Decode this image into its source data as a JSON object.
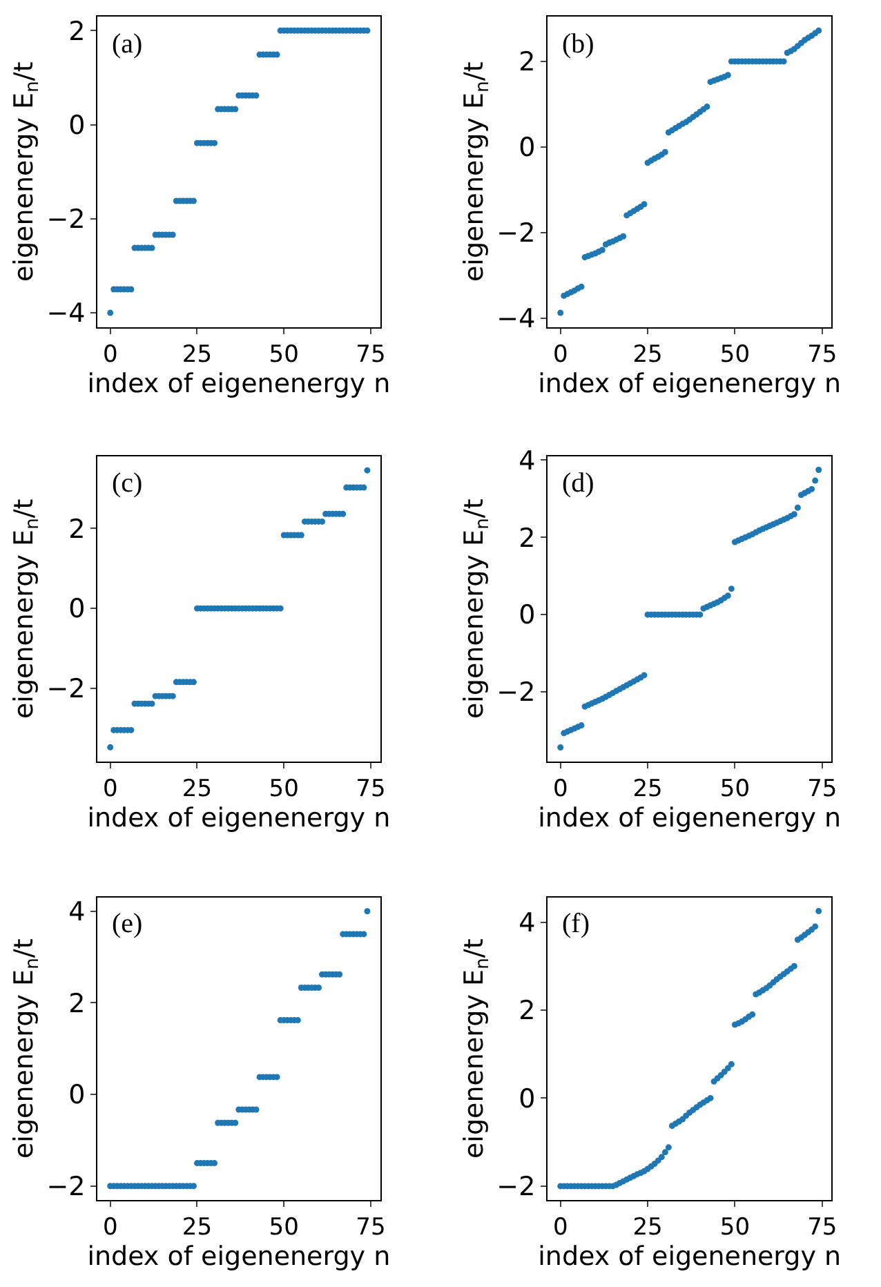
{
  "chart_data": [
    {
      "type": "scatter",
      "annotations": [
        "(a)"
      ],
      "xlabel": "index of eigenenergy n",
      "ylabel": "eigenenergy E$_{n}$/t",
      "xlim": [
        -3.7,
        77.7
      ],
      "xticks": [
        0,
        25,
        50,
        75
      ],
      "ylim": [
        -4.3,
        2.3
      ],
      "yticks": [
        -4,
        -2,
        0,
        2
      ],
      "marker": "circle",
      "grid": false,
      "x": [
        0,
        1,
        2,
        3,
        4,
        5,
        6,
        7,
        8,
        9,
        10,
        11,
        12,
        13,
        14,
        15,
        16,
        17,
        18,
        19,
        20,
        21,
        22,
        23,
        24,
        25,
        26,
        27,
        28,
        29,
        30,
        31,
        32,
        33,
        34,
        35,
        36,
        37,
        38,
        39,
        40,
        41,
        42,
        43,
        44,
        45,
        46,
        47,
        48,
        49,
        50,
        51,
        52,
        53,
        54,
        55,
        56,
        57,
        58,
        59,
        60,
        61,
        62,
        63,
        64,
        65,
        66,
        67,
        68,
        69,
        70,
        71,
        72,
        73,
        74
      ],
      "series": [
        {
          "color": "#1f77b4",
          "values": [
            -4.0,
            -3.5,
            -3.5,
            -3.5,
            -3.5,
            -3.5,
            -3.5,
            -2.62,
            -2.62,
            -2.62,
            -2.62,
            -2.62,
            -2.62,
            -2.34,
            -2.34,
            -2.34,
            -2.34,
            -2.34,
            -2.34,
            -1.62,
            -1.62,
            -1.62,
            -1.62,
            -1.62,
            -1.62,
            -0.39,
            -0.39,
            -0.39,
            -0.39,
            -0.39,
            -0.39,
            0.33,
            0.33,
            0.33,
            0.33,
            0.33,
            0.33,
            0.62,
            0.62,
            0.62,
            0.62,
            0.62,
            0.62,
            1.49,
            1.49,
            1.49,
            1.49,
            1.49,
            1.49,
            2.0,
            2.0,
            2.0,
            2.0,
            2.0,
            2.0,
            2.0,
            2.0,
            2.0,
            2.0,
            2.0,
            2.0,
            2.0,
            2.0,
            2.0,
            2.0,
            2.0,
            2.0,
            2.0,
            2.0,
            2.0,
            2.0,
            2.0,
            2.0,
            2.0,
            2.0
          ]
        }
      ]
    },
    {
      "type": "scatter",
      "annotations": [
        "(b)"
      ],
      "xlabel": "index of eigenenergy n",
      "ylabel": "eigenenergy E$_{n}$/t",
      "xlim": [
        -3.7,
        77.7
      ],
      "xticks": [
        0,
        25,
        50,
        75
      ],
      "ylim": [
        -4.21,
        3.05
      ],
      "yticks": [
        -4,
        -2,
        0,
        2
      ],
      "marker": "circle",
      "grid": false,
      "x": [
        0,
        1,
        2,
        3,
        4,
        5,
        6,
        7,
        8,
        9,
        10,
        11,
        12,
        13,
        14,
        15,
        16,
        17,
        18,
        19,
        20,
        21,
        22,
        23,
        24,
        25,
        26,
        27,
        28,
        29,
        30,
        31,
        32,
        33,
        34,
        35,
        36,
        37,
        38,
        39,
        40,
        41,
        42,
        43,
        44,
        45,
        46,
        47,
        48,
        49,
        50,
        51,
        52,
        53,
        54,
        55,
        56,
        57,
        58,
        59,
        60,
        61,
        62,
        63,
        64,
        65,
        66,
        67,
        68,
        69,
        70,
        71,
        72,
        73,
        74
      ],
      "series": [
        {
          "color": "#1f77b4",
          "values": [
            -3.88,
            -3.48,
            -3.44,
            -3.4,
            -3.36,
            -3.31,
            -3.27,
            -2.58,
            -2.55,
            -2.52,
            -2.49,
            -2.45,
            -2.41,
            -2.28,
            -2.24,
            -2.21,
            -2.17,
            -2.13,
            -2.09,
            -1.6,
            -1.55,
            -1.5,
            -1.45,
            -1.4,
            -1.34,
            -0.37,
            -0.32,
            -0.27,
            -0.23,
            -0.18,
            -0.12,
            0.34,
            0.39,
            0.44,
            0.49,
            0.54,
            0.58,
            0.64,
            0.7,
            0.76,
            0.82,
            0.88,
            0.94,
            1.52,
            1.55,
            1.58,
            1.61,
            1.64,
            1.68,
            2.0,
            2.0,
            2.0,
            2.0,
            2.0,
            2.0,
            2.0,
            2.0,
            2.0,
            2.0,
            2.0,
            2.0,
            2.0,
            2.0,
            2.0,
            2.0,
            2.2,
            2.24,
            2.29,
            2.36,
            2.43,
            2.5,
            2.55,
            2.6,
            2.66,
            2.72
          ]
        }
      ]
    },
    {
      "type": "scatter",
      "annotations": [
        "(c)"
      ],
      "xlabel": "index of eigenenergy n",
      "ylabel": "eigenenergy E$_{n}$/t",
      "xlim": [
        -3.7,
        77.7
      ],
      "xticks": [
        0,
        25,
        50,
        75
      ],
      "ylim": [
        -3.82,
        3.8
      ],
      "yticks": [
        -2,
        0,
        2
      ],
      "marker": "circle",
      "grid": false,
      "x": [
        0,
        1,
        2,
        3,
        4,
        5,
        6,
        7,
        8,
        9,
        10,
        11,
        12,
        13,
        14,
        15,
        16,
        17,
        18,
        19,
        20,
        21,
        22,
        23,
        24,
        25,
        26,
        27,
        28,
        29,
        30,
        31,
        32,
        33,
        34,
        35,
        36,
        37,
        38,
        39,
        40,
        41,
        42,
        43,
        44,
        45,
        46,
        47,
        48,
        49,
        50,
        51,
        52,
        53,
        54,
        55,
        56,
        57,
        58,
        59,
        60,
        61,
        62,
        63,
        64,
        65,
        66,
        67,
        68,
        69,
        70,
        71,
        72,
        73,
        74
      ],
      "series": [
        {
          "color": "#1f77b4",
          "values": [
            -3.47,
            -3.04,
            -3.04,
            -3.04,
            -3.04,
            -3.04,
            -3.04,
            -2.38,
            -2.38,
            -2.38,
            -2.38,
            -2.38,
            -2.38,
            -2.19,
            -2.19,
            -2.19,
            -2.19,
            -2.19,
            -2.19,
            -1.84,
            -1.84,
            -1.84,
            -1.84,
            -1.84,
            -1.84,
            0.0,
            0.0,
            0.0,
            0.0,
            0.0,
            0.0,
            0.0,
            0.0,
            0.0,
            0.0,
            0.0,
            0.0,
            0.0,
            0.0,
            0.0,
            0.0,
            0.0,
            0.0,
            0.0,
            0.0,
            0.0,
            0.0,
            0.0,
            0.0,
            0.0,
            1.83,
            1.83,
            1.83,
            1.83,
            1.83,
            1.83,
            2.17,
            2.17,
            2.17,
            2.17,
            2.17,
            2.17,
            2.36,
            2.36,
            2.36,
            2.36,
            2.36,
            2.36,
            3.02,
            3.02,
            3.02,
            3.02,
            3.02,
            3.02,
            3.45
          ]
        }
      ]
    },
    {
      "type": "scatter",
      "annotations": [
        "(d)"
      ],
      "xlabel": "index of eigenenergy n",
      "ylabel": "eigenenergy E$_{n}$/t",
      "xlim": [
        -3.7,
        77.7
      ],
      "xticks": [
        0,
        25,
        50,
        75
      ],
      "ylim": [
        -3.8,
        4.1
      ],
      "yticks": [
        -2,
        0,
        2,
        4
      ],
      "marker": "circle",
      "grid": false,
      "x": [
        0,
        1,
        2,
        3,
        4,
        5,
        6,
        7,
        8,
        9,
        10,
        11,
        12,
        13,
        14,
        15,
        16,
        17,
        18,
        19,
        20,
        21,
        22,
        23,
        24,
        25,
        26,
        27,
        28,
        29,
        30,
        31,
        32,
        33,
        34,
        35,
        36,
        37,
        38,
        39,
        40,
        41,
        42,
        43,
        44,
        45,
        46,
        47,
        48,
        49,
        50,
        51,
        52,
        53,
        54,
        55,
        56,
        57,
        58,
        59,
        60,
        61,
        62,
        63,
        64,
        65,
        66,
        67,
        68,
        69,
        70,
        71,
        72,
        73,
        74
      ],
      "series": [
        {
          "color": "#1f77b4",
          "values": [
            -3.44,
            -3.07,
            -3.03,
            -2.99,
            -2.95,
            -2.91,
            -2.87,
            -2.38,
            -2.34,
            -2.3,
            -2.26,
            -2.22,
            -2.18,
            -2.13,
            -2.08,
            -2.03,
            -1.98,
            -1.93,
            -1.88,
            -1.83,
            -1.78,
            -1.73,
            -1.68,
            -1.63,
            -1.57,
            0.0,
            0.0,
            0.0,
            0.0,
            0.0,
            0.0,
            0.0,
            0.0,
            0.0,
            0.0,
            0.0,
            0.0,
            0.0,
            0.0,
            0.0,
            0.0,
            0.16,
            0.2,
            0.24,
            0.28,
            0.32,
            0.37,
            0.43,
            0.49,
            0.67,
            1.88,
            1.92,
            1.96,
            2.0,
            2.04,
            2.08,
            2.13,
            2.18,
            2.22,
            2.26,
            2.3,
            2.34,
            2.38,
            2.42,
            2.46,
            2.5,
            2.55,
            2.6,
            2.77,
            3.1,
            3.15,
            3.2,
            3.25,
            3.47,
            3.75
          ]
        }
      ]
    },
    {
      "type": "scatter",
      "annotations": [
        "(e)"
      ],
      "xlabel": "index of eigenenergy n",
      "ylabel": "eigenenergy E$_{n}$/t",
      "xlim": [
        -3.7,
        77.7
      ],
      "xticks": [
        0,
        25,
        50,
        75
      ],
      "ylim": [
        -2.3,
        4.3
      ],
      "yticks": [
        -2,
        0,
        2,
        4
      ],
      "marker": "circle",
      "grid": false,
      "x": [
        0,
        1,
        2,
        3,
        4,
        5,
        6,
        7,
        8,
        9,
        10,
        11,
        12,
        13,
        14,
        15,
        16,
        17,
        18,
        19,
        20,
        21,
        22,
        23,
        24,
        25,
        26,
        27,
        28,
        29,
        30,
        31,
        32,
        33,
        34,
        35,
        36,
        37,
        38,
        39,
        40,
        41,
        42,
        43,
        44,
        45,
        46,
        47,
        48,
        49,
        50,
        51,
        52,
        53,
        54,
        55,
        56,
        57,
        58,
        59,
        60,
        61,
        62,
        63,
        64,
        65,
        66,
        67,
        68,
        69,
        70,
        71,
        72,
        73,
        74
      ],
      "series": [
        {
          "color": "#1f77b4",
          "values": [
            -2.0,
            -2.0,
            -2.0,
            -2.0,
            -2.0,
            -2.0,
            -2.0,
            -2.0,
            -2.0,
            -2.0,
            -2.0,
            -2.0,
            -2.0,
            -2.0,
            -2.0,
            -2.0,
            -2.0,
            -2.0,
            -2.0,
            -2.0,
            -2.0,
            -2.0,
            -2.0,
            -2.0,
            -2.0,
            -1.5,
            -1.5,
            -1.5,
            -1.5,
            -1.5,
            -1.5,
            -0.62,
            -0.62,
            -0.62,
            -0.62,
            -0.62,
            -0.62,
            -0.33,
            -0.33,
            -0.33,
            -0.33,
            -0.33,
            -0.33,
            0.38,
            0.38,
            0.38,
            0.38,
            0.38,
            0.38,
            1.62,
            1.62,
            1.62,
            1.62,
            1.62,
            1.62,
            2.33,
            2.33,
            2.33,
            2.33,
            2.33,
            2.33,
            2.62,
            2.62,
            2.62,
            2.62,
            2.62,
            2.62,
            3.5,
            3.5,
            3.5,
            3.5,
            3.5,
            3.5,
            3.5,
            4.0
          ]
        }
      ]
    },
    {
      "type": "scatter",
      "annotations": [
        "(f)"
      ],
      "xlabel": "index of eigenenergy n",
      "ylabel": "eigenenergy E$_{n}$/t",
      "xlim": [
        -3.7,
        77.7
      ],
      "xticks": [
        0,
        25,
        50,
        75
      ],
      "ylim": [
        -2.31,
        4.56
      ],
      "yticks": [
        -2,
        0,
        2,
        4
      ],
      "marker": "circle",
      "grid": false,
      "x": [
        0,
        1,
        2,
        3,
        4,
        5,
        6,
        7,
        8,
        9,
        10,
        11,
        12,
        13,
        14,
        15,
        16,
        17,
        18,
        19,
        20,
        21,
        22,
        23,
        24,
        25,
        26,
        27,
        28,
        29,
        30,
        31,
        32,
        33,
        34,
        35,
        36,
        37,
        38,
        39,
        40,
        41,
        42,
        43,
        44,
        45,
        46,
        47,
        48,
        49,
        50,
        51,
        52,
        53,
        54,
        55,
        56,
        57,
        58,
        59,
        60,
        61,
        62,
        63,
        64,
        65,
        66,
        67,
        68,
        69,
        70,
        71,
        72,
        73,
        74
      ],
      "series": [
        {
          "color": "#1f77b4",
          "values": [
            -2.0,
            -2.0,
            -2.0,
            -2.0,
            -2.0,
            -2.0,
            -2.0,
            -2.0,
            -2.0,
            -2.0,
            -2.0,
            -2.0,
            -2.0,
            -2.0,
            -2.0,
            -2.0,
            -1.97,
            -1.93,
            -1.89,
            -1.85,
            -1.81,
            -1.77,
            -1.73,
            -1.7,
            -1.66,
            -1.61,
            -1.55,
            -1.49,
            -1.42,
            -1.34,
            -1.23,
            -1.12,
            -0.63,
            -0.58,
            -0.53,
            -0.48,
            -0.4,
            -0.33,
            -0.27,
            -0.21,
            -0.15,
            -0.1,
            -0.05,
            0.0,
            0.38,
            0.45,
            0.52,
            0.6,
            0.68,
            0.77,
            1.67,
            1.7,
            1.74,
            1.79,
            1.85,
            1.9,
            2.36,
            2.4,
            2.45,
            2.5,
            2.56,
            2.63,
            2.7,
            2.76,
            2.82,
            2.88,
            2.94,
            3.0,
            3.6,
            3.65,
            3.71,
            3.77,
            3.83,
            3.9,
            4.25
          ]
        }
      ]
    }
  ]
}
